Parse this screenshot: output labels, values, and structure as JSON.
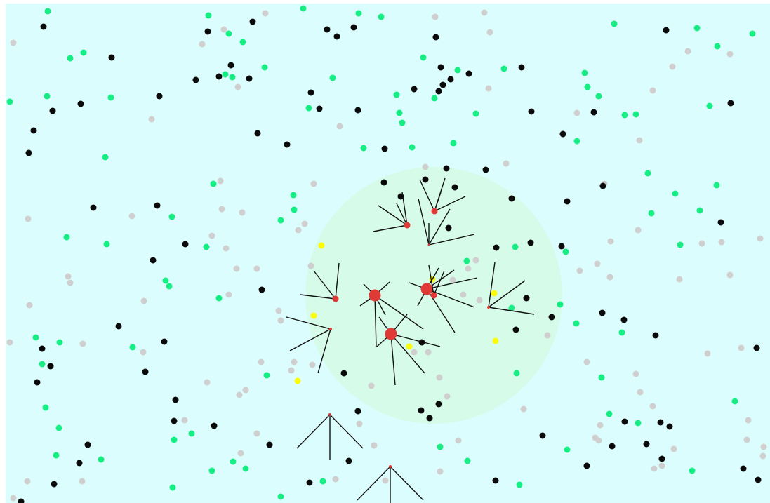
{
  "colors": {
    "background": "#dcfdfd",
    "page": "#ffffff",
    "vision_zone": "#d6fbe9",
    "food_green": "#16ee84",
    "food_black": "#0a0a0a",
    "food_grey": "#d0cfcf",
    "food_yellow": "#fbfb0a",
    "agent": "#df3a36",
    "limb": "#111111",
    "limb_dim": "#666666"
  }
}
